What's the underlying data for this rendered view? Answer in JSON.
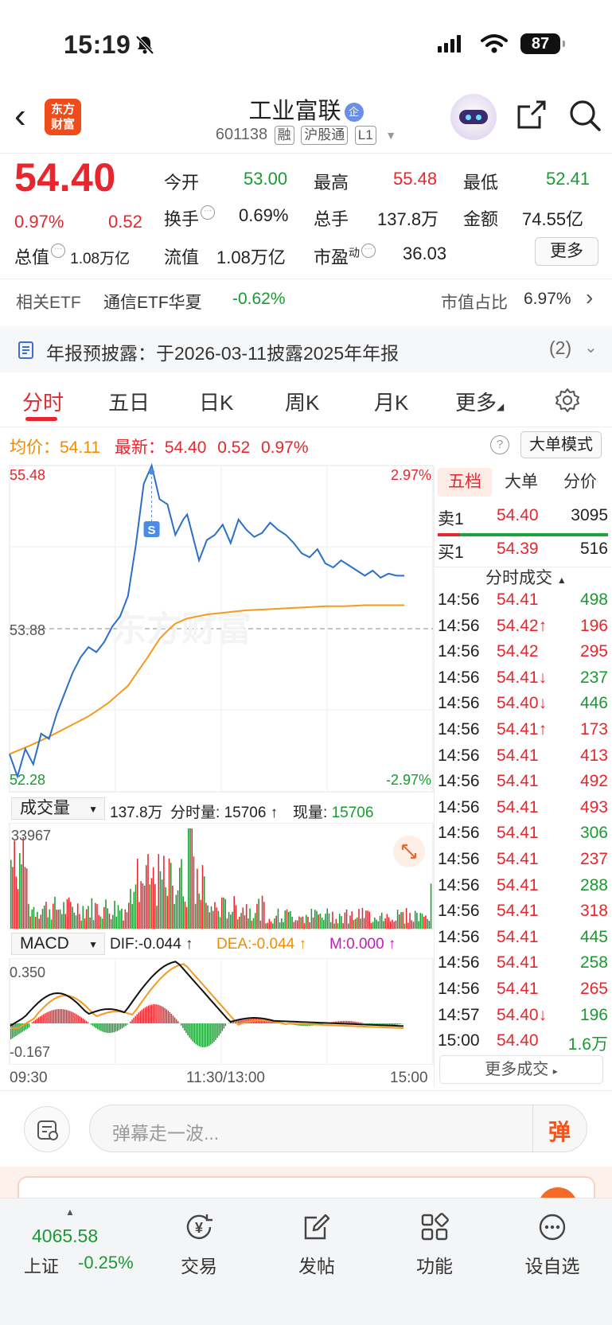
{
  "status": {
    "time": "15:19",
    "battery": "87"
  },
  "header": {
    "logo_line1": "东方",
    "logo_line2": "财富",
    "title": "工业富联",
    "title_badge": "企",
    "code": "601138",
    "tags": [
      "融",
      "沪股通",
      "L1"
    ]
  },
  "quote": {
    "price": "54.40",
    "change_pct": "0.97%",
    "change_amt": "0.52",
    "open_label": "今开",
    "open": "53.00",
    "high_label": "最高",
    "high": "55.48",
    "low_label": "最低",
    "low": "52.41",
    "turnover_label": "换手",
    "turnover": "0.69%",
    "volume_label": "总手",
    "volume": "137.8万",
    "amount_label": "金额",
    "amount": "74.55亿",
    "mktcap_label": "总值",
    "mktcap": "1.08万亿",
    "float_label": "流值",
    "float": "1.08万亿",
    "pe_label": "市盈",
    "pe_sup": "动",
    "pe": "36.03",
    "more_label": "更多"
  },
  "etf": {
    "label": "相关ETF",
    "name": "通信ETF华夏",
    "change": "-0.62%",
    "ratio_label": "市值占比",
    "ratio": "6.97%"
  },
  "notice": {
    "text": "年报预披露：于2026-03-11披露2025年年报",
    "count": "(2)"
  },
  "tabs": [
    "分时",
    "五日",
    "日K",
    "周K",
    "月K",
    "更多"
  ],
  "intraday": {
    "avg_label": "均价：",
    "avg": "54.11",
    "latest_label": "最新：",
    "latest": "54.40",
    "chg": "0.52",
    "pct": "0.97%",
    "big_order_mode": "大单模式",
    "ymax": "55.48",
    "ymid": "53.88",
    "ymin": "52.28",
    "pmax": "2.97%",
    "pmin": "-2.97%",
    "s_marker": "S"
  },
  "volume_panel": {
    "selector": "成交量",
    "total": "137.8万",
    "interval_label": "分时量:",
    "interval": "15706",
    "current_label": "现量:",
    "current": "15706",
    "vmax": "33967"
  },
  "macd": {
    "selector": "MACD",
    "dif": "DIF:-0.044",
    "dea": "DEA:-0.044",
    "m": "M:0.000",
    "ymax": "0.350",
    "ymin": "-0.167"
  },
  "time_axis": [
    "09:30",
    "11:30/13:00",
    "15:00"
  ],
  "order_book": {
    "tabs": [
      "五档",
      "大单",
      "分价"
    ],
    "sell1": {
      "label": "卖1",
      "price": "54.40",
      "vol": "3095"
    },
    "buy1": {
      "label": "买1",
      "price": "54.39",
      "vol": "516"
    },
    "ticks_label": "分时成交",
    "ticks": [
      {
        "t": "14:56",
        "p": "54.41",
        "a": "",
        "v": "498",
        "vc": "green"
      },
      {
        "t": "14:56",
        "p": "54.42",
        "a": "↑",
        "v": "196",
        "vc": "red"
      },
      {
        "t": "14:56",
        "p": "54.42",
        "a": "",
        "v": "295",
        "vc": "red"
      },
      {
        "t": "14:56",
        "p": "54.41",
        "a": "↓",
        "v": "237",
        "vc": "green"
      },
      {
        "t": "14:56",
        "p": "54.40",
        "a": "↓",
        "v": "446",
        "vc": "green"
      },
      {
        "t": "14:56",
        "p": "54.41",
        "a": "↑",
        "v": "173",
        "vc": "red"
      },
      {
        "t": "14:56",
        "p": "54.41",
        "a": "",
        "v": "413",
        "vc": "red"
      },
      {
        "t": "14:56",
        "p": "54.41",
        "a": "",
        "v": "492",
        "vc": "red"
      },
      {
        "t": "14:56",
        "p": "54.41",
        "a": "",
        "v": "493",
        "vc": "red"
      },
      {
        "t": "14:56",
        "p": "54.41",
        "a": "",
        "v": "306",
        "vc": "green"
      },
      {
        "t": "14:56",
        "p": "54.41",
        "a": "",
        "v": "237",
        "vc": "red"
      },
      {
        "t": "14:56",
        "p": "54.41",
        "a": "",
        "v": "288",
        "vc": "green"
      },
      {
        "t": "14:56",
        "p": "54.41",
        "a": "",
        "v": "318",
        "vc": "red"
      },
      {
        "t": "14:56",
        "p": "54.41",
        "a": "",
        "v": "445",
        "vc": "green"
      },
      {
        "t": "14:56",
        "p": "54.41",
        "a": "",
        "v": "258",
        "vc": "green"
      },
      {
        "t": "14:56",
        "p": "54.41",
        "a": "",
        "v": "265",
        "vc": "red"
      },
      {
        "t": "14:57",
        "p": "54.40",
        "a": "↓",
        "v": "196",
        "vc": "green"
      },
      {
        "t": "15:00",
        "p": "54.40",
        "a": "",
        "v": "1.6万",
        "vc": "green"
      }
    ],
    "more_ticks": "更多成交"
  },
  "danmu": {
    "placeholder": "弹幕走一波...",
    "btn": "弹"
  },
  "bottom_nav": {
    "index_value": "4065.58",
    "index_name": "上证",
    "index_change": "-0.25%",
    "items": [
      "交易",
      "发帖",
      "功能",
      "设自选"
    ]
  },
  "chart_data": {
    "type": "line",
    "title": "",
    "x_range": [
      "09:30",
      "15:00"
    ],
    "ylim": [
      52.28,
      55.48
    ],
    "prev_close": 53.88,
    "series": [
      {
        "name": "",
        "color": "#2a6fc9",
        "x": [
          0,
          2,
          4,
          6,
          8,
          10,
          12,
          14,
          16,
          18,
          20,
          22,
          24,
          26,
          28,
          30,
          32,
          34,
          36,
          38,
          40,
          42,
          44,
          45,
          47,
          48,
          50,
          52,
          54,
          56,
          58,
          60,
          62,
          64,
          66,
          68,
          70,
          72,
          74,
          76,
          78,
          80,
          82,
          84,
          86,
          88,
          90,
          92,
          94,
          96,
          98,
          100
        ],
        "values": [
          52.65,
          52.43,
          52.7,
          52.55,
          52.85,
          52.8,
          53.05,
          53.25,
          53.45,
          53.6,
          53.7,
          53.65,
          53.75,
          53.9,
          54.0,
          54.2,
          54.7,
          55.3,
          55.48,
          55.15,
          55.1,
          54.8,
          54.95,
          55.0,
          54.7,
          54.55,
          54.75,
          54.8,
          54.9,
          54.72,
          54.95,
          54.85,
          54.78,
          54.82,
          54.92,
          54.85,
          54.8,
          54.72,
          54.62,
          54.58,
          54.66,
          54.52,
          54.48,
          54.55,
          54.5,
          54.45,
          54.4,
          54.45,
          54.38,
          54.42,
          54.4,
          54.4
        ]
      },
      {
        "name": "",
        "color": "#f59a1d",
        "x": [
          0,
          5,
          10,
          15,
          20,
          25,
          30,
          35,
          38,
          40,
          42,
          45,
          50,
          55,
          60,
          65,
          70,
          75,
          80,
          85,
          90,
          95,
          100
        ],
        "values": [
          52.65,
          52.73,
          52.82,
          52.92,
          53.02,
          53.15,
          53.32,
          53.6,
          53.78,
          53.86,
          53.93,
          53.98,
          54.02,
          54.04,
          54.06,
          54.07,
          54.08,
          54.09,
          54.1,
          54.1,
          54.11,
          54.11,
          54.11
        ]
      }
    ],
    "x_unit": "percent of trading session"
  }
}
